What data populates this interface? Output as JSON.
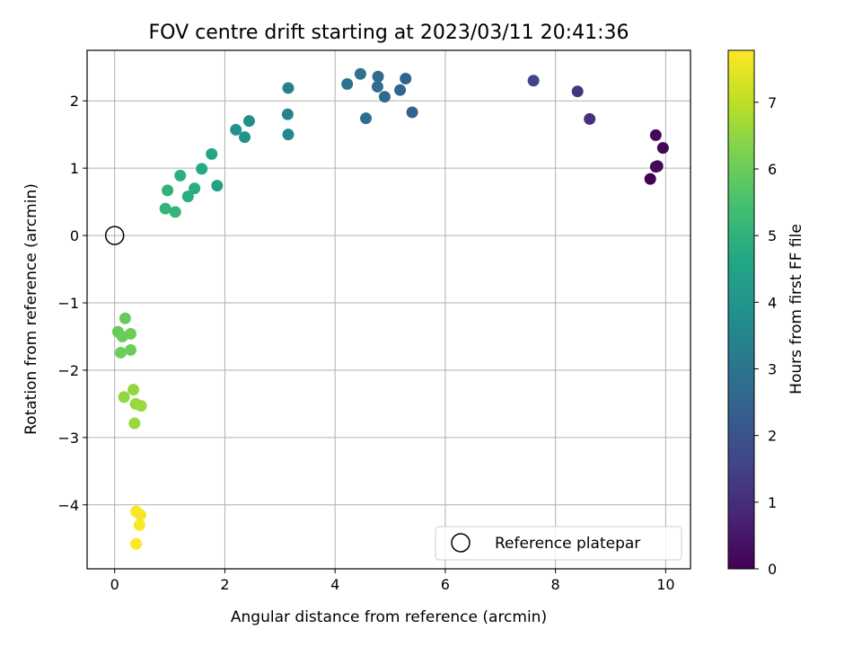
{
  "chart_data": {
    "type": "scatter",
    "title": "FOV centre drift starting at 2023/03/11 20:41:36",
    "xlabel": "Angular distance from reference (arcmin)",
    "ylabel": "Rotation from reference (arcmin)",
    "xlim": [
      -0.5,
      10.45
    ],
    "ylim": [
      -4.95,
      2.75
    ],
    "xticks": [
      0,
      2,
      4,
      6,
      8,
      10
    ],
    "yticks": [
      -4,
      -3,
      -2,
      -1,
      0,
      1,
      2
    ],
    "xtick_labels": [
      "0",
      "2",
      "4",
      "6",
      "8",
      "10"
    ],
    "ytick_labels": [
      "−4",
      "−3",
      "−2",
      "−1",
      "0",
      "1",
      "2"
    ],
    "grid": true,
    "colormap": "viridis",
    "colorbar": {
      "label": "Hours from first FF file",
      "range": [
        0,
        7.78
      ],
      "ticks": [
        0,
        1,
        2,
        3,
        4,
        5,
        6,
        7
      ],
      "tick_labels": [
        "0",
        "1",
        "2",
        "3",
        "4",
        "5",
        "6",
        "7"
      ]
    },
    "legend": {
      "position": "bottom-right",
      "entry": "Reference platepar"
    },
    "reference_point": {
      "x": 0,
      "y": 0
    },
    "points": [
      {
        "x": 9.72,
        "y": 0.84,
        "hours": 0.0
      },
      {
        "x": 9.85,
        "y": 1.03,
        "hours": 0.05
      },
      {
        "x": 9.95,
        "y": 1.3,
        "hours": 0.1
      },
      {
        "x": 9.82,
        "y": 1.49,
        "hours": 0.15
      },
      {
        "x": 9.82,
        "y": 1.02,
        "hours": 0.2
      },
      {
        "x": 8.62,
        "y": 1.73,
        "hours": 1.1
      },
      {
        "x": 8.4,
        "y": 2.14,
        "hours": 1.2
      },
      {
        "x": 7.6,
        "y": 2.3,
        "hours": 1.6
      },
      {
        "x": 5.4,
        "y": 1.83,
        "hours": 2.4
      },
      {
        "x": 5.28,
        "y": 2.33,
        "hours": 2.5
      },
      {
        "x": 5.18,
        "y": 2.16,
        "hours": 2.55
      },
      {
        "x": 4.9,
        "y": 2.06,
        "hours": 2.65
      },
      {
        "x": 4.78,
        "y": 2.36,
        "hours": 2.7
      },
      {
        "x": 4.77,
        "y": 2.21,
        "hours": 2.75
      },
      {
        "x": 4.56,
        "y": 1.74,
        "hours": 2.8
      },
      {
        "x": 4.46,
        "y": 2.4,
        "hours": 2.85
      },
      {
        "x": 4.22,
        "y": 2.25,
        "hours": 2.95
      },
      {
        "x": 3.15,
        "y": 2.19,
        "hours": 3.4
      },
      {
        "x": 3.14,
        "y": 1.8,
        "hours": 3.5
      },
      {
        "x": 3.15,
        "y": 1.5,
        "hours": 3.55
      },
      {
        "x": 2.44,
        "y": 1.7,
        "hours": 3.8
      },
      {
        "x": 2.2,
        "y": 1.57,
        "hours": 3.9
      },
      {
        "x": 2.36,
        "y": 1.46,
        "hours": 3.95
      },
      {
        "x": 1.86,
        "y": 0.74,
        "hours": 4.5
      },
      {
        "x": 1.76,
        "y": 1.21,
        "hours": 4.6
      },
      {
        "x": 1.58,
        "y": 0.99,
        "hours": 4.7
      },
      {
        "x": 1.45,
        "y": 0.7,
        "hours": 4.8
      },
      {
        "x": 1.33,
        "y": 0.58,
        "hours": 4.85
      },
      {
        "x": 1.19,
        "y": 0.89,
        "hours": 4.9
      },
      {
        "x": 0.96,
        "y": 0.67,
        "hours": 5.0
      },
      {
        "x": 0.92,
        "y": 0.4,
        "hours": 5.05
      },
      {
        "x": 1.1,
        "y": 0.35,
        "hours": 5.1
      },
      {
        "x": 0.19,
        "y": -1.23,
        "hours": 5.9
      },
      {
        "x": 0.06,
        "y": -1.43,
        "hours": 5.95
      },
      {
        "x": 0.14,
        "y": -1.5,
        "hours": 6.0
      },
      {
        "x": 0.29,
        "y": -1.46,
        "hours": 6.05
      },
      {
        "x": 0.29,
        "y": -1.7,
        "hours": 6.05
      },
      {
        "x": 0.11,
        "y": -1.74,
        "hours": 6.05
      },
      {
        "x": 0.34,
        "y": -2.29,
        "hours": 6.5
      },
      {
        "x": 0.17,
        "y": -2.4,
        "hours": 6.5
      },
      {
        "x": 0.38,
        "y": -2.5,
        "hours": 6.55
      },
      {
        "x": 0.48,
        "y": -2.53,
        "hours": 6.6
      },
      {
        "x": 0.36,
        "y": -2.79,
        "hours": 6.6
      },
      {
        "x": 0.39,
        "y": -4.1,
        "hours": 7.7
      },
      {
        "x": 0.47,
        "y": -4.15,
        "hours": 7.72
      },
      {
        "x": 0.45,
        "y": -4.3,
        "hours": 7.74
      },
      {
        "x": 0.39,
        "y": -4.58,
        "hours": 7.76
      }
    ]
  }
}
